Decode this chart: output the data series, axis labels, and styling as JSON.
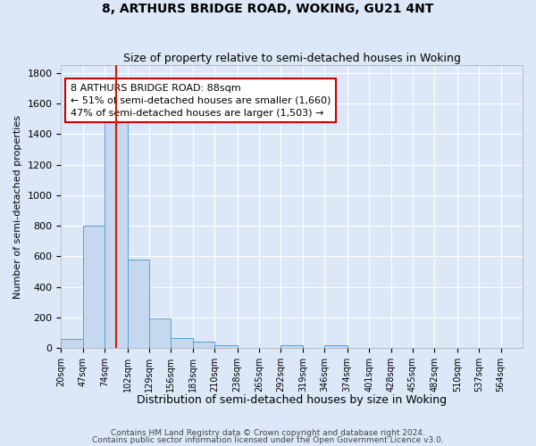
{
  "title": "8, ARTHURS BRIDGE ROAD, WOKING, GU21 4NT",
  "subtitle": "Size of property relative to semi-detached houses in Woking",
  "xlabel": "Distribution of semi-detached houses by size in Woking",
  "ylabel": "Number of semi-detached properties",
  "footnote1": "Contains HM Land Registry data © Crown copyright and database right 2024.",
  "footnote2": "Contains public sector information licensed under the Open Government Licence v3.0.",
  "annotation_title": "8 ARTHURS BRIDGE ROAD: 88sqm",
  "annotation_line1": "← 51% of semi-detached houses are smaller (1,660)",
  "annotation_line2": "47% of semi-detached houses are larger (1,503) →",
  "bar_edges": [
    20,
    47,
    74,
    102,
    129,
    156,
    183,
    210,
    238,
    265,
    292,
    319,
    346,
    374,
    401,
    428,
    455,
    482,
    510,
    537,
    564
  ],
  "bar_heights": [
    60,
    800,
    1500,
    580,
    195,
    65,
    42,
    20,
    0,
    0,
    20,
    0,
    20,
    0,
    0,
    0,
    0,
    0,
    0,
    0
  ],
  "tick_labels": [
    "20sqm",
    "47sqm",
    "74sqm",
    "102sqm",
    "129sqm",
    "156sqm",
    "183sqm",
    "210sqm",
    "238sqm",
    "265sqm",
    "292sqm",
    "319sqm",
    "346sqm",
    "374sqm",
    "401sqm",
    "428sqm",
    "455sqm",
    "482sqm",
    "510sqm",
    "537sqm",
    "564sqm"
  ],
  "bar_color": "#c5d8f0",
  "bar_edge_color": "#5a9fd4",
  "property_line_x": 88,
  "ylim": [
    0,
    1850
  ],
  "yticks": [
    0,
    200,
    400,
    600,
    800,
    1000,
    1200,
    1400,
    1600,
    1800
  ],
  "bg_color": "#dce8f8",
  "grid_color": "#ffffff",
  "annotation_box_facecolor": "#ffffff",
  "annotation_box_edgecolor": "#cc0000"
}
